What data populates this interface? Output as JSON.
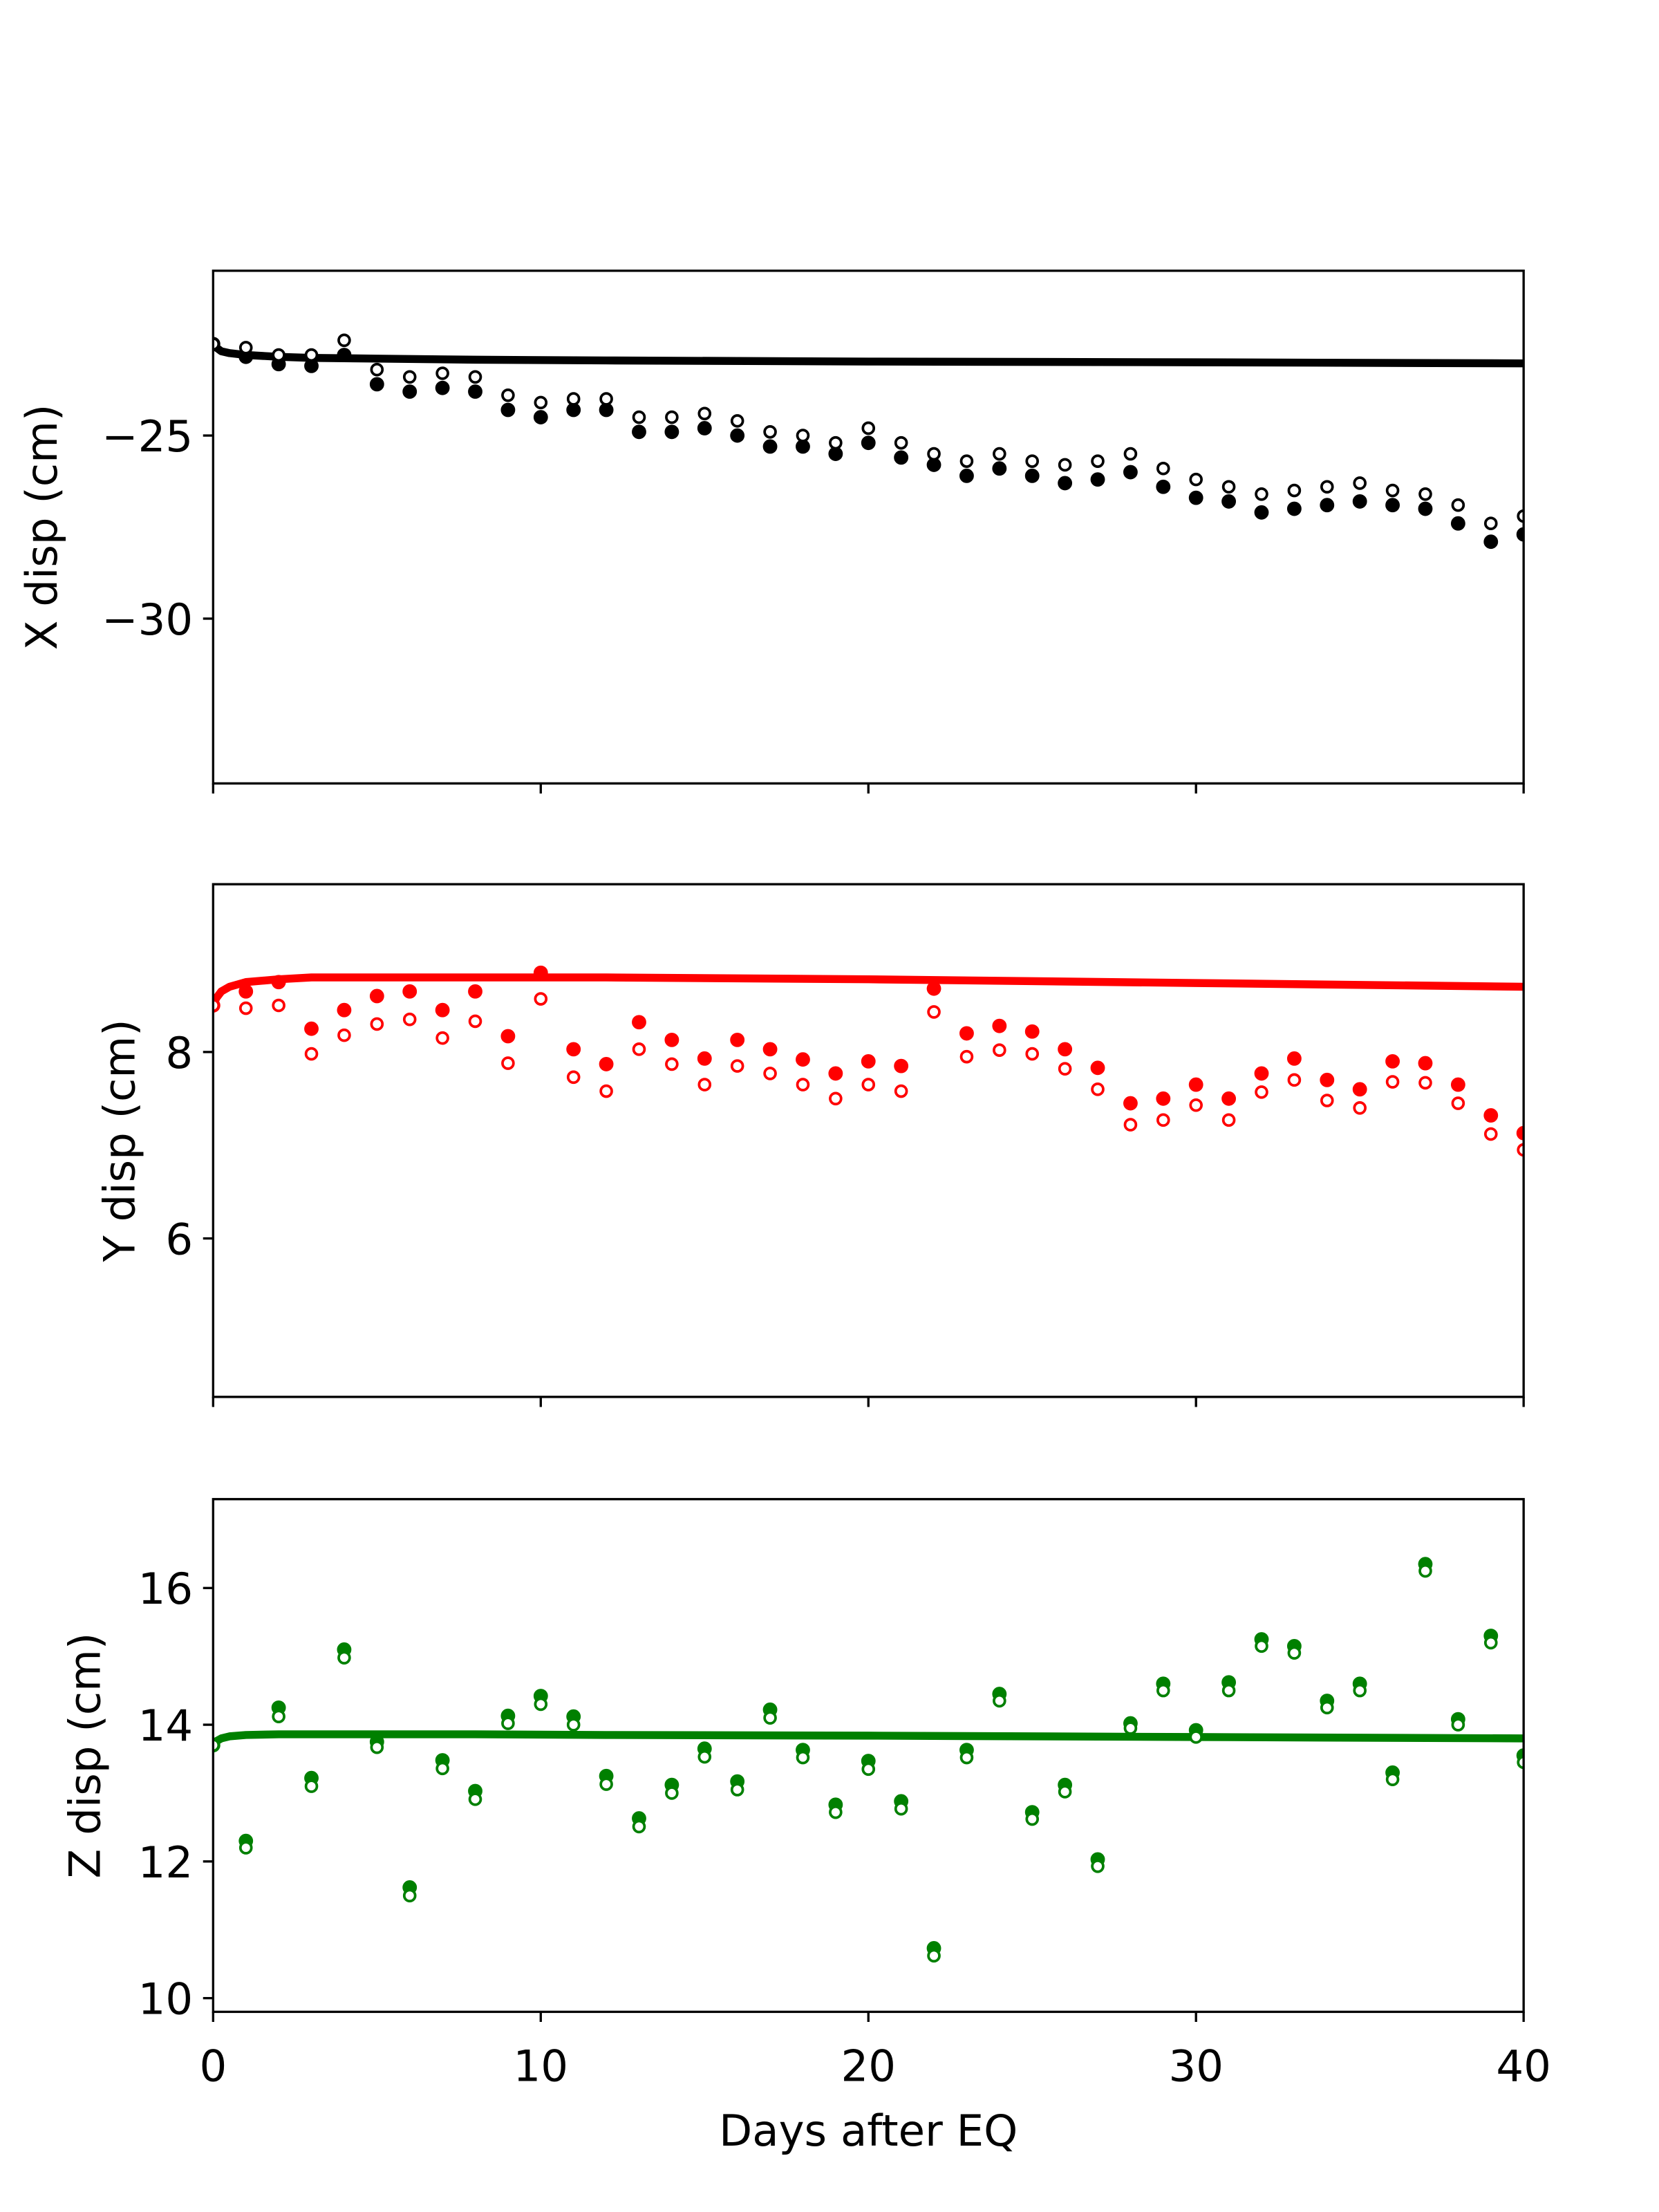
{
  "chart_data": [
    {
      "type": "scatter",
      "ylabel": "X disp (cm)",
      "ylim": [
        -34.5,
        -20.5
      ],
      "yticks": [
        -25,
        -30
      ],
      "ytick_labels": [
        "−25",
        "−30"
      ],
      "xlim": [
        0,
        40
      ],
      "color": "#000000",
      "series": [
        {
          "kind": "line",
          "x": [
            0,
            0.1,
            0.25,
            0.5,
            1,
            2,
            3,
            5,
            8,
            12,
            20,
            30,
            40
          ],
          "values": [
            -22.5,
            -22.6,
            -22.7,
            -22.75,
            -22.8,
            -22.85,
            -22.88,
            -22.9,
            -22.93,
            -22.95,
            -22.98,
            -23.0,
            -23.03
          ]
        },
        {
          "kind": "filled-markers",
          "x": [
            0,
            1,
            2,
            3,
            4,
            5,
            6,
            7,
            8,
            9,
            10,
            11,
            12,
            13,
            14,
            15,
            16,
            17,
            18,
            19,
            20,
            21,
            22,
            23,
            24,
            25,
            26,
            27,
            28,
            29,
            30,
            31,
            32,
            33,
            34,
            35,
            36,
            37,
            38,
            39,
            40
          ],
          "values": [
            -22.5,
            -22.85,
            -23.05,
            -23.1,
            -22.8,
            -23.6,
            -23.8,
            -23.7,
            -23.8,
            -24.3,
            -24.5,
            -24.3,
            -24.3,
            -24.9,
            -24.9,
            -24.8,
            -25.0,
            -25.3,
            -25.3,
            -25.5,
            -25.2,
            -25.6,
            -25.8,
            -26.1,
            -25.9,
            -26.1,
            -26.3,
            -26.2,
            -26.0,
            -26.4,
            -26.7,
            -26.8,
            -27.1,
            -27.0,
            -26.9,
            -26.8,
            -26.9,
            -27.0,
            -27.4,
            -27.9,
            -27.7
          ]
        },
        {
          "kind": "open-markers",
          "x": [
            0,
            1,
            2,
            3,
            4,
            5,
            6,
            7,
            8,
            9,
            10,
            11,
            12,
            13,
            14,
            15,
            16,
            17,
            18,
            19,
            20,
            21,
            22,
            23,
            24,
            25,
            26,
            27,
            28,
            29,
            30,
            31,
            32,
            33,
            34,
            35,
            36,
            37,
            38,
            39,
            40
          ],
          "values": [
            -22.5,
            -22.6,
            -22.8,
            -22.8,
            -22.4,
            -23.2,
            -23.4,
            -23.3,
            -23.4,
            -23.9,
            -24.1,
            -24.0,
            -24.0,
            -24.5,
            -24.5,
            -24.4,
            -24.6,
            -24.9,
            -25.0,
            -25.2,
            -24.8,
            -25.2,
            -25.5,
            -25.7,
            -25.5,
            -25.7,
            -25.8,
            -25.7,
            -25.5,
            -25.9,
            -26.2,
            -26.4,
            -26.6,
            -26.5,
            -26.4,
            -26.3,
            -26.5,
            -26.6,
            -26.9,
            -27.4,
            -27.2
          ]
        }
      ]
    },
    {
      "type": "scatter",
      "ylabel": "Y disp (cm)",
      "ylim": [
        4.3,
        9.8
      ],
      "yticks": [
        8,
        6
      ],
      "ytick_labels": [
        "8",
        "6"
      ],
      "xlim": [
        0,
        40
      ],
      "color": "#ff0000",
      "series": [
        {
          "kind": "line",
          "x": [
            0,
            0.1,
            0.25,
            0.5,
            1,
            2,
            3,
            5,
            8,
            12,
            20,
            30,
            40
          ],
          "values": [
            8.5,
            8.58,
            8.65,
            8.7,
            8.75,
            8.78,
            8.8,
            8.8,
            8.8,
            8.8,
            8.78,
            8.74,
            8.7
          ]
        },
        {
          "kind": "filled-markers",
          "x": [
            0,
            1,
            2,
            3,
            4,
            5,
            6,
            7,
            8,
            9,
            10,
            11,
            12,
            13,
            14,
            15,
            16,
            17,
            18,
            19,
            20,
            21,
            22,
            23,
            24,
            25,
            26,
            27,
            28,
            29,
            30,
            31,
            32,
            33,
            34,
            35,
            36,
            37,
            38,
            39,
            40
          ],
          "values": [
            8.5,
            8.65,
            8.75,
            8.25,
            8.45,
            8.6,
            8.65,
            8.45,
            8.65,
            8.17,
            8.85,
            8.03,
            7.87,
            8.32,
            8.13,
            7.93,
            8.13,
            8.03,
            7.92,
            7.77,
            7.9,
            7.85,
            8.68,
            8.2,
            8.28,
            8.22,
            8.03,
            7.83,
            7.45,
            7.5,
            7.65,
            7.5,
            7.77,
            7.93,
            7.7,
            7.6,
            7.9,
            7.88,
            7.65,
            7.32,
            7.13
          ]
        },
        {
          "kind": "open-markers",
          "x": [
            0,
            1,
            2,
            3,
            4,
            5,
            6,
            7,
            8,
            9,
            10,
            11,
            12,
            13,
            14,
            15,
            16,
            17,
            18,
            19,
            20,
            21,
            22,
            23,
            24,
            25,
            26,
            27,
            28,
            29,
            30,
            31,
            32,
            33,
            34,
            35,
            36,
            37,
            38,
            39,
            40
          ],
          "values": [
            8.5,
            8.47,
            8.5,
            7.98,
            8.18,
            8.3,
            8.35,
            8.15,
            8.33,
            7.88,
            8.57,
            7.73,
            7.58,
            8.03,
            7.87,
            7.65,
            7.85,
            7.77,
            7.65,
            7.5,
            7.65,
            7.58,
            8.43,
            7.95,
            8.02,
            7.98,
            7.82,
            7.6,
            7.22,
            7.27,
            7.43,
            7.27,
            7.57,
            7.7,
            7.48,
            7.4,
            7.68,
            7.67,
            7.45,
            7.12,
            6.95
          ]
        }
      ]
    },
    {
      "type": "scatter",
      "ylabel": "Z disp (cm)",
      "ylim": [
        9.8,
        17.3
      ],
      "yticks": [
        16,
        14,
        12,
        10
      ],
      "ytick_labels": [
        "16",
        "14",
        "12",
        "10"
      ],
      "xlim": [
        0,
        40
      ],
      "xticks": [
        0,
        10,
        20,
        30,
        40
      ],
      "xtick_labels": [
        "0",
        "10",
        "20",
        "30",
        "40"
      ],
      "xlabel": "Days after EQ",
      "color": "#008000",
      "series": [
        {
          "kind": "line",
          "x": [
            0,
            0.1,
            0.25,
            0.5,
            1,
            2,
            3,
            5,
            8,
            12,
            20,
            30,
            40
          ],
          "values": [
            13.7,
            13.76,
            13.8,
            13.83,
            13.85,
            13.86,
            13.86,
            13.86,
            13.86,
            13.85,
            13.84,
            13.82,
            13.8
          ]
        },
        {
          "kind": "filled-markers",
          "x": [
            0,
            1,
            2,
            3,
            4,
            5,
            6,
            7,
            8,
            9,
            10,
            11,
            12,
            13,
            14,
            15,
            16,
            17,
            18,
            19,
            20,
            21,
            22,
            23,
            24,
            25,
            26,
            27,
            28,
            29,
            30,
            31,
            32,
            33,
            34,
            35,
            36,
            37,
            38,
            39,
            40
          ],
          "values": [
            13.7,
            12.3,
            14.25,
            13.22,
            15.1,
            13.75,
            11.62,
            13.48,
            13.03,
            14.13,
            14.42,
            14.12,
            13.25,
            12.63,
            13.12,
            13.65,
            13.17,
            14.22,
            13.63,
            12.83,
            13.47,
            12.88,
            10.73,
            13.63,
            14.45,
            12.72,
            13.12,
            12.03,
            14.02,
            14.6,
            13.92,
            14.62,
            15.25,
            15.15,
            14.35,
            14.6,
            13.3,
            16.35,
            14.08,
            15.3,
            13.55
          ]
        },
        {
          "kind": "open-markers",
          "x": [
            0,
            1,
            2,
            3,
            4,
            5,
            6,
            7,
            8,
            9,
            10,
            11,
            12,
            13,
            14,
            15,
            16,
            17,
            18,
            19,
            20,
            21,
            22,
            23,
            24,
            25,
            26,
            27,
            28,
            29,
            30,
            31,
            32,
            33,
            34,
            35,
            36,
            37,
            38,
            39,
            40
          ],
          "values": [
            13.7,
            12.2,
            14.12,
            13.1,
            14.98,
            13.67,
            11.5,
            13.36,
            12.91,
            14.02,
            14.3,
            14.0,
            13.13,
            12.51,
            13.0,
            13.53,
            13.05,
            14.1,
            13.52,
            12.72,
            13.35,
            12.77,
            10.62,
            13.52,
            14.35,
            12.62,
            13.02,
            11.93,
            13.95,
            14.5,
            13.82,
            14.5,
            15.15,
            15.05,
            14.25,
            14.5,
            13.2,
            16.25,
            14.0,
            15.2,
            13.45
          ]
        }
      ]
    }
  ]
}
